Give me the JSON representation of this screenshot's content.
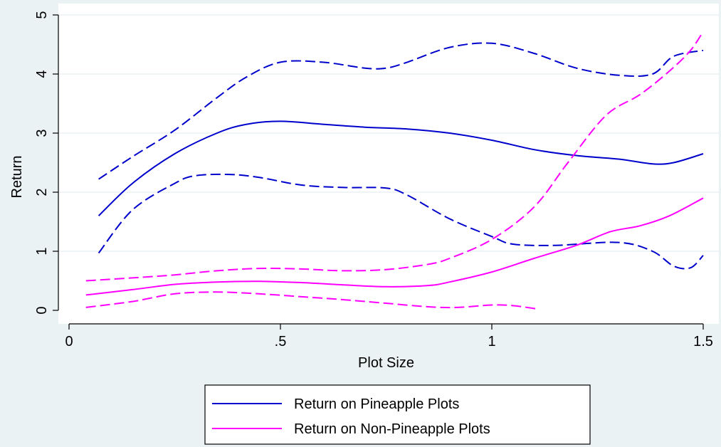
{
  "chart_data": {
    "type": "line",
    "title": "",
    "xlabel": "Plot Size",
    "ylabel": "Return",
    "xlim": [
      0,
      1.5
    ],
    "ylim": [
      0,
      5
    ],
    "x_ticks": [
      {
        "value": 0,
        "label": "0"
      },
      {
        "value": 0.5,
        "label": ".5"
      },
      {
        "value": 1,
        "label": "1"
      },
      {
        "value": 1.5,
        "label": "1.5"
      }
    ],
    "y_ticks": [
      {
        "value": 0,
        "label": "0"
      },
      {
        "value": 1,
        "label": "1"
      },
      {
        "value": 2,
        "label": "2"
      },
      {
        "value": 3,
        "label": "3"
      },
      {
        "value": 4,
        "label": "4"
      },
      {
        "value": 5,
        "label": "5"
      }
    ],
    "grid": "horizontal",
    "legend_position": "bottom-center",
    "legend": [
      {
        "label": "Return on Pineapple Plots",
        "color": "#0000cc"
      },
      {
        "label": "Return on Non-Pineapple Plots",
        "color": "#ff00ff"
      }
    ],
    "series": [
      {
        "color": "#0000cc",
        "dash": false,
        "points": [
          [
            0.07,
            1.6
          ],
          [
            0.15,
            2.15
          ],
          [
            0.25,
            2.65
          ],
          [
            0.35,
            3.0
          ],
          [
            0.42,
            3.15
          ],
          [
            0.5,
            3.2
          ],
          [
            0.6,
            3.15
          ],
          [
            0.7,
            3.1
          ],
          [
            0.8,
            3.07
          ],
          [
            0.9,
            3.0
          ],
          [
            1.0,
            2.88
          ],
          [
            1.1,
            2.72
          ],
          [
            1.2,
            2.62
          ],
          [
            1.3,
            2.56
          ],
          [
            1.38,
            2.48
          ],
          [
            1.43,
            2.5
          ],
          [
            1.5,
            2.65
          ]
        ]
      },
      {
        "color": "#0000cc",
        "dash": true,
        "points": [
          [
            0.07,
            2.22
          ],
          [
            0.15,
            2.6
          ],
          [
            0.25,
            3.05
          ],
          [
            0.35,
            3.6
          ],
          [
            0.42,
            3.95
          ],
          [
            0.5,
            4.2
          ],
          [
            0.6,
            4.2
          ],
          [
            0.7,
            4.1
          ],
          [
            0.75,
            4.1
          ],
          [
            0.8,
            4.2
          ],
          [
            0.9,
            4.45
          ],
          [
            1.0,
            4.52
          ],
          [
            1.1,
            4.35
          ],
          [
            1.2,
            4.1
          ],
          [
            1.3,
            3.98
          ],
          [
            1.38,
            4.0
          ],
          [
            1.43,
            4.3
          ],
          [
            1.5,
            4.4
          ]
        ]
      },
      {
        "color": "#0000cc",
        "dash": true,
        "points": [
          [
            0.07,
            0.97
          ],
          [
            0.15,
            1.7
          ],
          [
            0.25,
            2.15
          ],
          [
            0.3,
            2.28
          ],
          [
            0.38,
            2.3
          ],
          [
            0.45,
            2.25
          ],
          [
            0.55,
            2.12
          ],
          [
            0.65,
            2.08
          ],
          [
            0.75,
            2.07
          ],
          [
            0.8,
            1.95
          ],
          [
            0.9,
            1.55
          ],
          [
            1.0,
            1.25
          ],
          [
            1.05,
            1.12
          ],
          [
            1.15,
            1.1
          ],
          [
            1.3,
            1.15
          ],
          [
            1.38,
            1.0
          ],
          [
            1.43,
            0.75
          ],
          [
            1.47,
            0.72
          ],
          [
            1.5,
            0.93
          ]
        ]
      },
      {
        "color": "#ff00ff",
        "dash": false,
        "points": [
          [
            0.04,
            0.26
          ],
          [
            0.15,
            0.35
          ],
          [
            0.25,
            0.44
          ],
          [
            0.35,
            0.48
          ],
          [
            0.45,
            0.49
          ],
          [
            0.55,
            0.47
          ],
          [
            0.65,
            0.43
          ],
          [
            0.75,
            0.4
          ],
          [
            0.85,
            0.42
          ],
          [
            0.9,
            0.48
          ],
          [
            1.0,
            0.65
          ],
          [
            1.1,
            0.88
          ],
          [
            1.2,
            1.1
          ],
          [
            1.28,
            1.33
          ],
          [
            1.35,
            1.43
          ],
          [
            1.42,
            1.6
          ],
          [
            1.5,
            1.9
          ]
        ]
      },
      {
        "color": "#ff00ff",
        "dash": true,
        "points": [
          [
            0.04,
            0.5
          ],
          [
            0.15,
            0.55
          ],
          [
            0.25,
            0.6
          ],
          [
            0.35,
            0.67
          ],
          [
            0.45,
            0.71
          ],
          [
            0.55,
            0.7
          ],
          [
            0.65,
            0.67
          ],
          [
            0.75,
            0.69
          ],
          [
            0.85,
            0.78
          ],
          [
            0.9,
            0.88
          ],
          [
            1.0,
            1.2
          ],
          [
            1.1,
            1.75
          ],
          [
            1.18,
            2.5
          ],
          [
            1.27,
            3.3
          ],
          [
            1.35,
            3.65
          ],
          [
            1.42,
            4.05
          ],
          [
            1.47,
            4.4
          ],
          [
            1.5,
            4.72
          ]
        ]
      },
      {
        "color": "#ff00ff",
        "dash": true,
        "points": [
          [
            0.04,
            0.05
          ],
          [
            0.15,
            0.15
          ],
          [
            0.25,
            0.28
          ],
          [
            0.35,
            0.31
          ],
          [
            0.45,
            0.28
          ],
          [
            0.55,
            0.23
          ],
          [
            0.65,
            0.18
          ],
          [
            0.75,
            0.12
          ],
          [
            0.85,
            0.06
          ],
          [
            0.92,
            0.05
          ],
          [
            1.0,
            0.09
          ],
          [
            1.05,
            0.08
          ],
          [
            1.11,
            0.02
          ]
        ]
      }
    ]
  }
}
